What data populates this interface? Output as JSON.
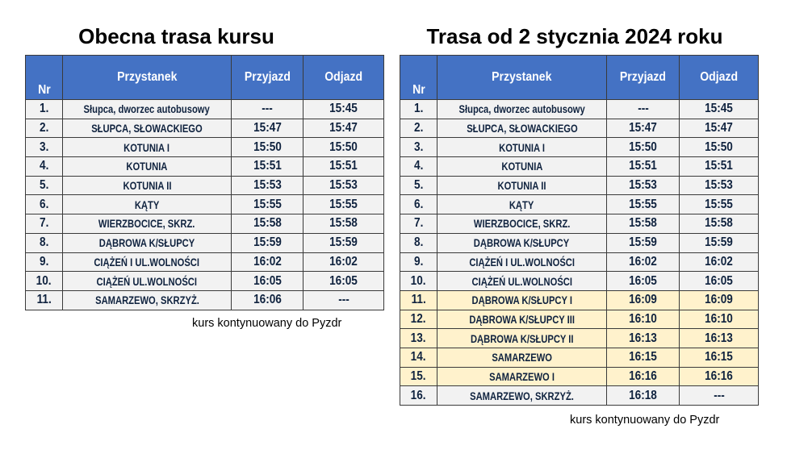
{
  "columns": {
    "nr": "Nr",
    "stop": "Przystanek",
    "arrival": "Przyjazd",
    "departure": "Odjazd"
  },
  "colors": {
    "header": "#4472C4",
    "row": "#F2F2F2",
    "new_stop_highlight": "#FFF2CC",
    "text": "#10233F"
  },
  "current": {
    "title": "Obecna trasa kursu",
    "note": "kurs kontynuowany do Pyzdr",
    "rows": [
      {
        "nr": "1.",
        "stop": "Słupca, dworzec autobusowy",
        "arr": "---",
        "dep": "15:45"
      },
      {
        "nr": "2.",
        "stop": "SŁUPCA, SŁOWACKIEGO",
        "arr": "15:47",
        "dep": "15:47"
      },
      {
        "nr": "3.",
        "stop": "KOTUNIA I",
        "arr": "15:50",
        "dep": "15:50"
      },
      {
        "nr": "4.",
        "stop": "KOTUNIA",
        "arr": "15:51",
        "dep": "15:51"
      },
      {
        "nr": "5.",
        "stop": "KOTUNIA II",
        "arr": "15:53",
        "dep": "15:53"
      },
      {
        "nr": "6.",
        "stop": "KĄTY",
        "arr": "15:55",
        "dep": "15:55"
      },
      {
        "nr": "7.",
        "stop": "WIERZBOCICE, SKRZ.",
        "arr": "15:58",
        "dep": "15:58"
      },
      {
        "nr": "8.",
        "stop": "DĄBROWA K/SŁUPCY",
        "arr": "15:59",
        "dep": "15:59"
      },
      {
        "nr": "9.",
        "stop": "CIĄŻEŃ I UL.WOLNOŚCI",
        "arr": "16:02",
        "dep": "16:02"
      },
      {
        "nr": "10.",
        "stop": "CIĄŻEŃ UL.WOLNOŚCI",
        "arr": "16:05",
        "dep": "16:05"
      },
      {
        "nr": "11.",
        "stop": "SAMARZEWO, SKRZYŻ.",
        "arr": "16:06",
        "dep": "---"
      }
    ]
  },
  "new": {
    "title": "Trasa od 2 stycznia 2024 roku",
    "note": "kurs kontynuowany do Pyzdr",
    "rows": [
      {
        "nr": "1.",
        "stop": "Słupca, dworzec autobusowy",
        "arr": "---",
        "dep": "15:45"
      },
      {
        "nr": "2.",
        "stop": "SŁUPCA, SŁOWACKIEGO",
        "arr": "15:47",
        "dep": "15:47"
      },
      {
        "nr": "3.",
        "stop": "KOTUNIA I",
        "arr": "15:50",
        "dep": "15:50"
      },
      {
        "nr": "4.",
        "stop": "KOTUNIA",
        "arr": "15:51",
        "dep": "15:51"
      },
      {
        "nr": "5.",
        "stop": "KOTUNIA II",
        "arr": "15:53",
        "dep": "15:53"
      },
      {
        "nr": "6.",
        "stop": "KĄTY",
        "arr": "15:55",
        "dep": "15:55"
      },
      {
        "nr": "7.",
        "stop": "WIERZBOCICE, SKRZ.",
        "arr": "15:58",
        "dep": "15:58"
      },
      {
        "nr": "8.",
        "stop": "DĄBROWA K/SŁUPCY",
        "arr": "15:59",
        "dep": "15:59"
      },
      {
        "nr": "9.",
        "stop": "CIĄŻEŃ I UL.WOLNOŚCI",
        "arr": "16:02",
        "dep": "16:02"
      },
      {
        "nr": "10.",
        "stop": "CIĄŻEŃ UL.WOLNOŚCI",
        "arr": "16:05",
        "dep": "16:05"
      },
      {
        "nr": "11.",
        "stop": "DĄBROWA K/SŁUPCY I",
        "arr": "16:09",
        "dep": "16:09",
        "highlight": true
      },
      {
        "nr": "12.",
        "stop": "DĄBROWA K/SŁUPCY III",
        "arr": "16:10",
        "dep": "16:10",
        "highlight": true
      },
      {
        "nr": "13.",
        "stop": "DĄBROWA K/SŁUPCY II",
        "arr": "16:13",
        "dep": "16:13",
        "highlight": true
      },
      {
        "nr": "14.",
        "stop": "SAMARZEWO",
        "arr": "16:15",
        "dep": "16:15",
        "highlight": true
      },
      {
        "nr": "15.",
        "stop": "SAMARZEWO I",
        "arr": "16:16",
        "dep": "16:16",
        "highlight": true
      },
      {
        "nr": "16.",
        "stop": "SAMARZEWO, SKRZYŻ.",
        "arr": "16:18",
        "dep": "---"
      }
    ]
  }
}
